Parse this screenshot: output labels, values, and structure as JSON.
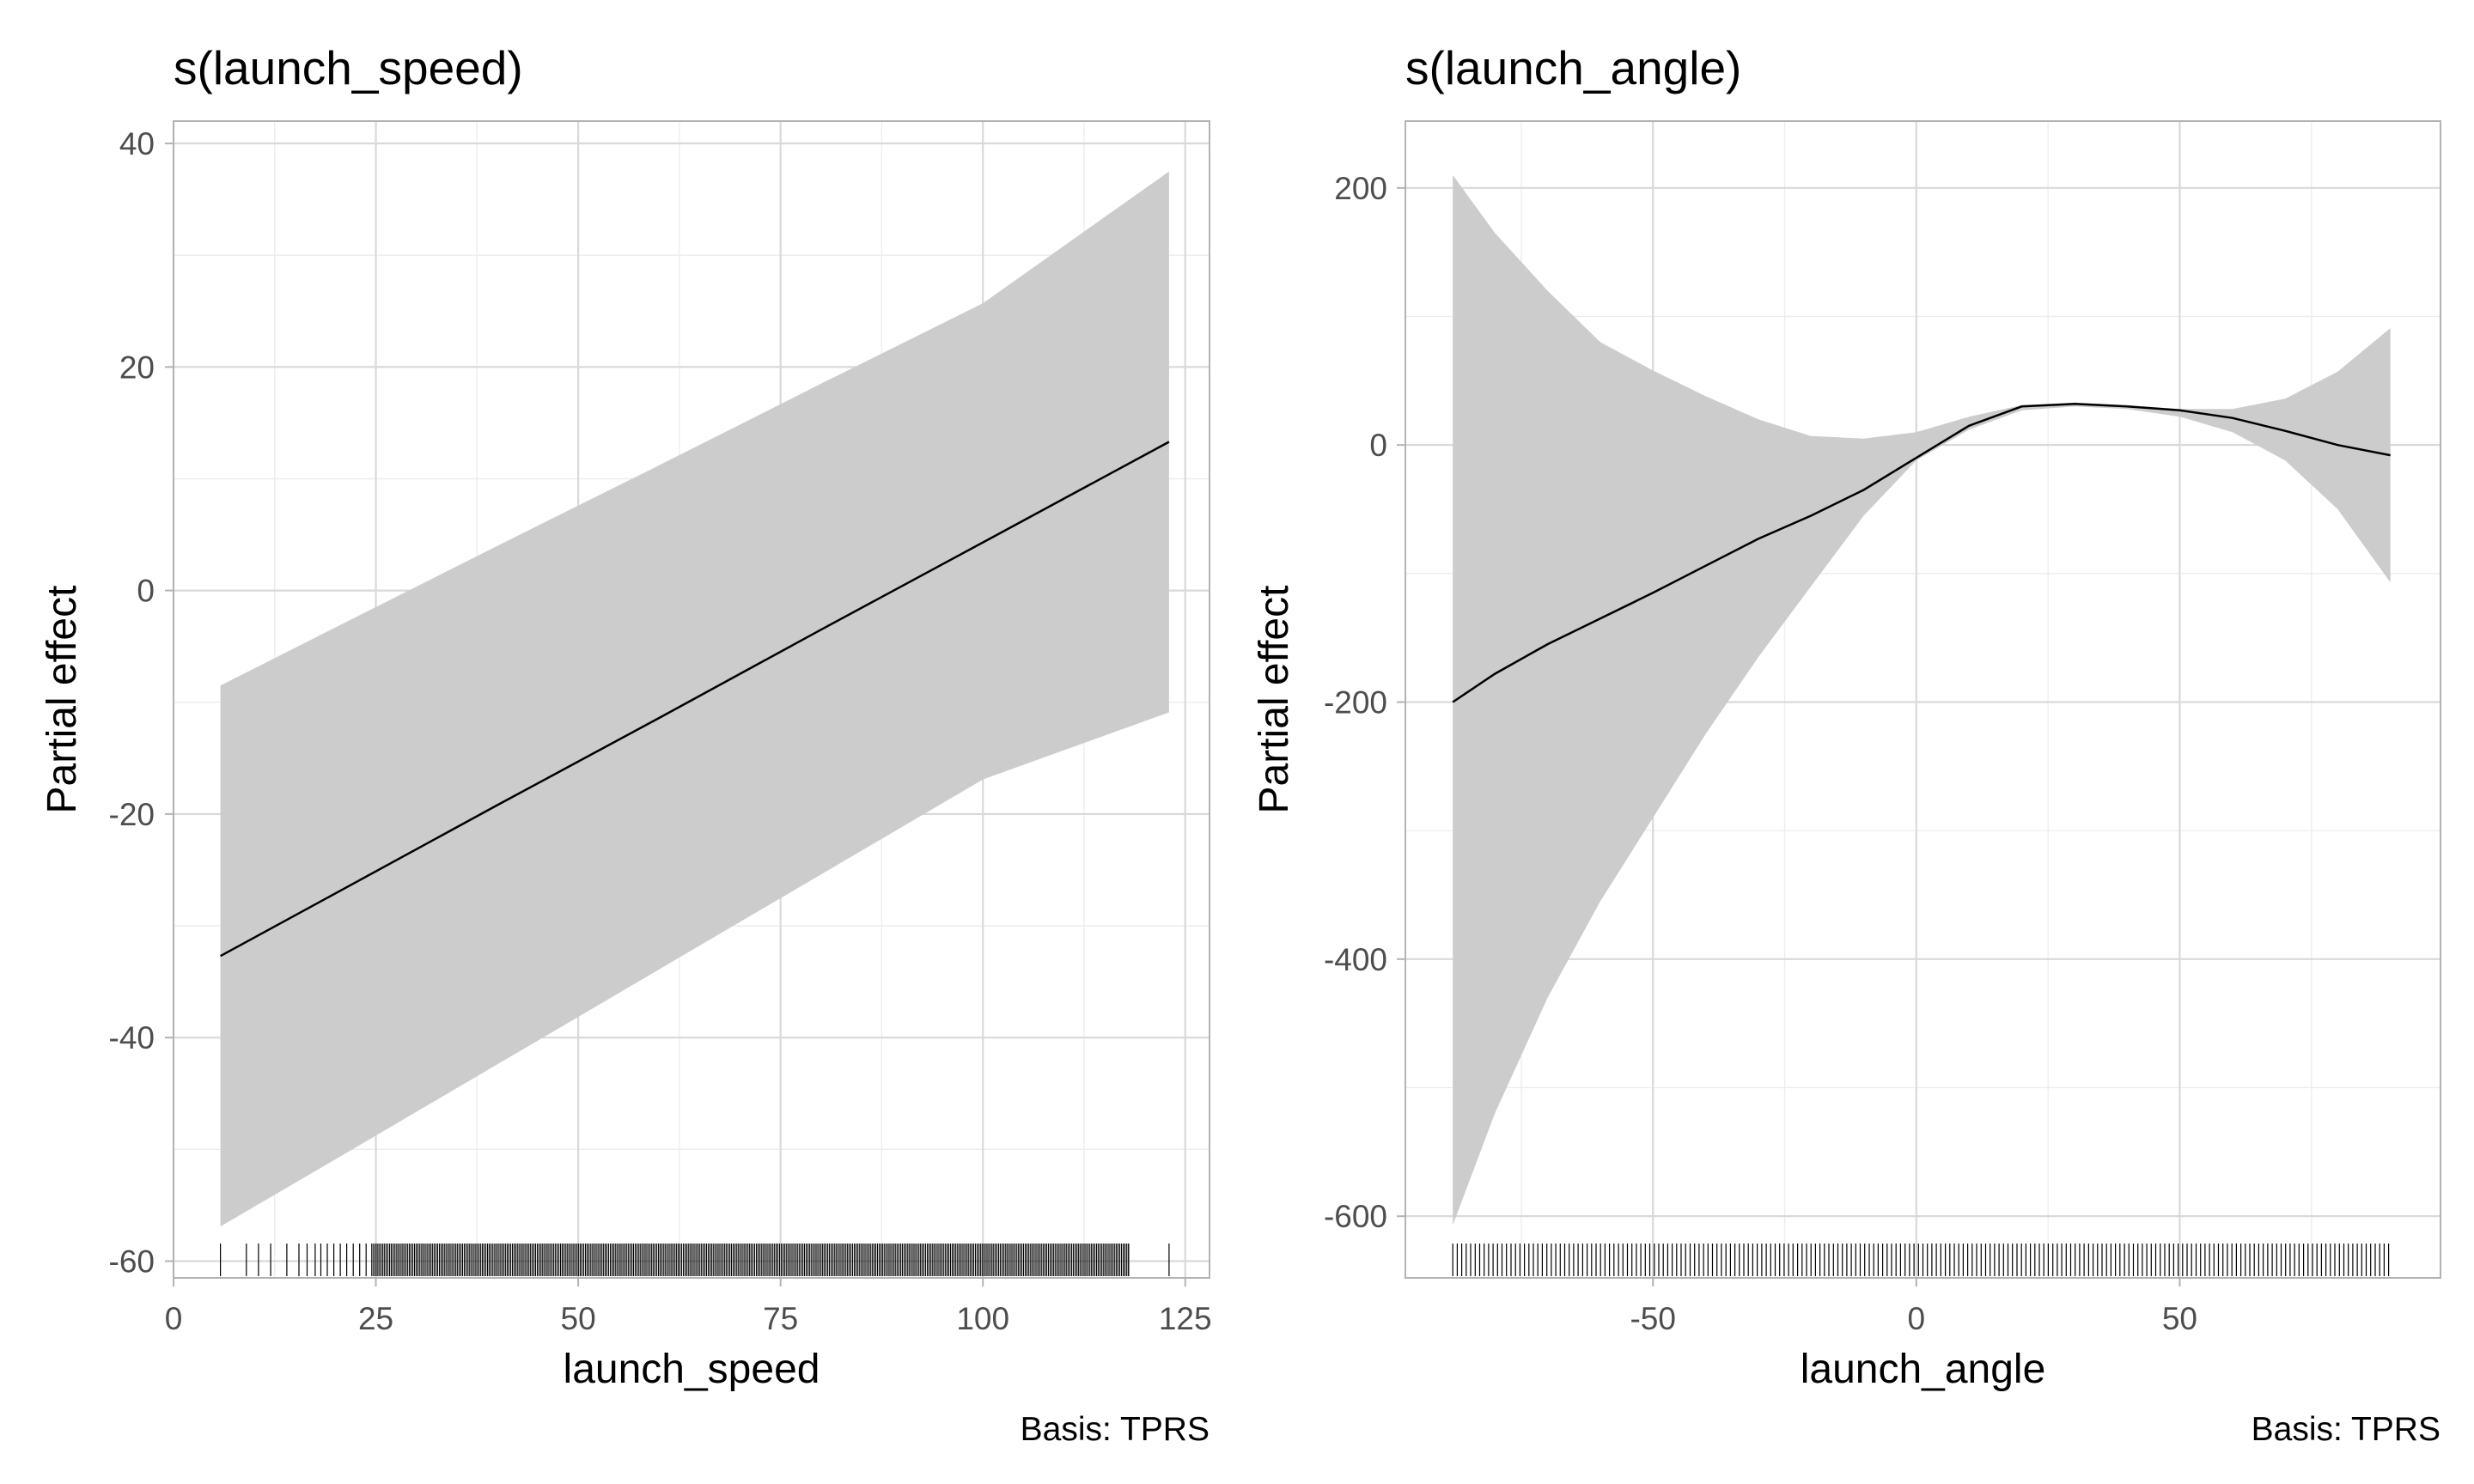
{
  "chart_data": [
    {
      "type": "line",
      "title": "s(launch_speed)",
      "xlabel": "launch_speed",
      "ylabel": "Partial effect",
      "caption": "Basis: TPRS",
      "xlim": [
        0,
        128
      ],
      "ylim": [
        -61.5,
        42
      ],
      "x_ticks": [
        0,
        25,
        50,
        75,
        100,
        125
      ],
      "x_tick_labels": [
        "0",
        "25",
        "50",
        "75",
        "100",
        "125"
      ],
      "y_ticks": [
        -60,
        -40,
        -20,
        0,
        20,
        40
      ],
      "y_tick_labels": [
        "-60",
        "-40",
        "-20",
        "0",
        "20",
        "40"
      ],
      "grid": true,
      "series": [
        {
          "x": [
            5.8,
            20,
            40,
            60,
            80,
            100,
            123
          ],
          "fit": [
            -32.7,
            -27.1,
            -19.2,
            -11.4,
            -3.5,
            4.3,
            13.3
          ],
          "lower": [
            -56.9,
            -50.9,
            -42.4,
            -33.9,
            -25.4,
            -16.9,
            -10.9
          ],
          "upper": [
            -8.5,
            -3.3,
            4.0,
            11.2,
            18.5,
            25.7,
            37.5
          ]
        }
      ],
      "rug": {
        "sparse": [
          5.8,
          9,
          10.5,
          12,
          14,
          15.5,
          16.5,
          17.5,
          18.2,
          19,
          19.8,
          20.6,
          21.4,
          22.2,
          23,
          23.8,
          118,
          123
        ],
        "dense_range": [
          24.5,
          118
        ],
        "dense_step": 0.22
      }
    },
    {
      "type": "line",
      "title": "s(launch_angle)",
      "xlabel": "launch_angle",
      "ylabel": "Partial effect",
      "caption": "Basis: TPRS",
      "xlim": [
        -97,
        99.5
      ],
      "ylim": [
        -648,
        252
      ],
      "x_ticks": [
        -50,
        0,
        50
      ],
      "x_tick_labels": [
        "-50",
        "0",
        "50"
      ],
      "y_ticks": [
        -600,
        -400,
        -200,
        0,
        200
      ],
      "y_tick_labels": [
        "-600",
        "-400",
        "-200",
        "0",
        "200"
      ],
      "grid": true,
      "series": [
        {
          "x": [
            -88,
            -80,
            -70,
            -60,
            -50,
            -40,
            -30,
            -20,
            -10,
            0,
            10,
            20,
            30,
            40,
            50,
            60,
            70,
            80,
            90
          ],
          "fit": [
            -200,
            -178,
            -155,
            -135,
            -115,
            -94,
            -73,
            -55,
            -35,
            -10,
            15,
            30,
            32,
            30,
            27,
            21,
            11,
            0,
            -8
          ],
          "lower": [
            -607,
            -520,
            -430,
            -355,
            -290,
            -225,
            -165,
            -110,
            -55,
            -12,
            12,
            27,
            30,
            28,
            22,
            10,
            -12,
            -50,
            -107
          ],
          "upper": [
            210,
            165,
            120,
            80,
            58,
            38,
            20,
            7,
            5,
            10,
            22,
            31,
            33,
            31,
            28,
            28,
            36,
            57,
            91
          ]
        }
      ],
      "rug": {
        "range": [
          -88,
          90
        ],
        "step": 0.85
      }
    }
  ]
}
